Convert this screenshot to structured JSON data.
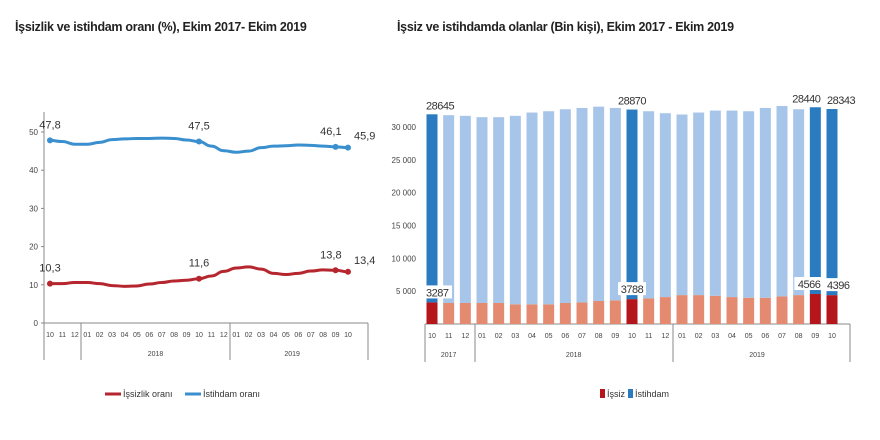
{
  "chart_data": [
    {
      "type": "line",
      "title": "İşsizlik ve istihdam oranı (%), Ekim 2017- Ekim 2019",
      "x": [
        "10",
        "11",
        "12",
        "01",
        "02",
        "03",
        "04",
        "05",
        "06",
        "07",
        "08",
        "09",
        "10",
        "11",
        "12",
        "01",
        "02",
        "03",
        "04",
        "05",
        "06",
        "07",
        "08",
        "09",
        "10"
      ],
      "year_groups": [
        {
          "label": "",
          "from": 0,
          "to": 2
        },
        {
          "label": "2018",
          "from": 3,
          "to": 14
        },
        {
          "label": "2019",
          "from": 15,
          "to": 24
        }
      ],
      "ylim": [
        0,
        50
      ],
      "yticks": [
        0,
        10,
        20,
        30,
        40,
        50
      ],
      "grid": false,
      "legend": "bottom",
      "series": [
        {
          "name": "İşsizlik oranı",
          "color": "#b5262e",
          "values": [
            10.3,
            10.3,
            10.6,
            10.6,
            10.3,
            9.8,
            9.6,
            9.7,
            10.2,
            10.6,
            11.0,
            11.2,
            11.6,
            12.3,
            13.5,
            14.4,
            14.7,
            14.1,
            13.0,
            12.7,
            13.0,
            13.6,
            13.9,
            13.8,
            13.4
          ],
          "labels": {
            "0": "10,3",
            "12": "11,6",
            "23": "13,8",
            "24": "13,4"
          }
        },
        {
          "name": "İstihdam oranı",
          "color": "#3a8fcf",
          "values": [
            47.8,
            47.5,
            46.8,
            46.8,
            47.3,
            48.0,
            48.2,
            48.3,
            48.3,
            48.4,
            48.3,
            47.9,
            47.5,
            46.3,
            45.1,
            44.7,
            45.0,
            45.9,
            46.3,
            46.4,
            46.6,
            46.5,
            46.3,
            46.1,
            45.9
          ],
          "labels": {
            "0": "47,8",
            "12": "47,5",
            "23": "46,1",
            "24": "45,9"
          }
        }
      ]
    },
    {
      "type": "bar",
      "stacked": true,
      "title": "İşsiz ve istihdamda olanlar (Bin kişi), Ekim 2017 - Ekim 2019",
      "x": [
        "10",
        "11",
        "12",
        "01",
        "02",
        "03",
        "04",
        "05",
        "06",
        "07",
        "08",
        "09",
        "10",
        "11",
        "12",
        "01",
        "02",
        "03",
        "04",
        "05",
        "06",
        "07",
        "08",
        "09",
        "10"
      ],
      "year_groups": [
        {
          "label": "2017",
          "from": 0,
          "to": 2
        },
        {
          "label": "2018",
          "from": 3,
          "to": 14
        },
        {
          "label": "2019",
          "from": 15,
          "to": 24
        }
      ],
      "ylim": [
        0,
        33500
      ],
      "yticks": [
        5000,
        10000,
        15000,
        20000,
        25000,
        30000
      ],
      "ytick_labels": [
        "5 000",
        "10 000",
        "15 000",
        "20 000",
        "25 000",
        "30 000"
      ],
      "grid": false,
      "legend": "bottom",
      "highlighted": [
        0,
        12,
        23,
        24
      ],
      "series": [
        {
          "name": "İşsiz",
          "color": "#b5161b",
          "light_color": "#e38a70",
          "values": [
            3287,
            3200,
            3200,
            3200,
            3200,
            3000,
            3000,
            3000,
            3200,
            3300,
            3500,
            3600,
            3788,
            3900,
            4100,
            4400,
            4400,
            4300,
            4100,
            4000,
            4000,
            4200,
            4400,
            4566,
            4396
          ],
          "labels": {
            "0": "3287",
            "12": "3788",
            "23": "4566",
            "24": "4396"
          }
        },
        {
          "name": "İstihdam",
          "color": "#2a7bc0",
          "light_color": "#a7c5e8",
          "values": [
            28645,
            28600,
            28500,
            28300,
            28300,
            28700,
            29200,
            29400,
            29500,
            29600,
            29600,
            29300,
            28870,
            28500,
            28000,
            27500,
            27800,
            28200,
            28400,
            28400,
            28900,
            29000,
            28300,
            28440,
            28343
          ],
          "labels": {
            "0": "28645",
            "12": "28870",
            "23": "28440",
            "24": "28343"
          }
        }
      ]
    }
  ]
}
